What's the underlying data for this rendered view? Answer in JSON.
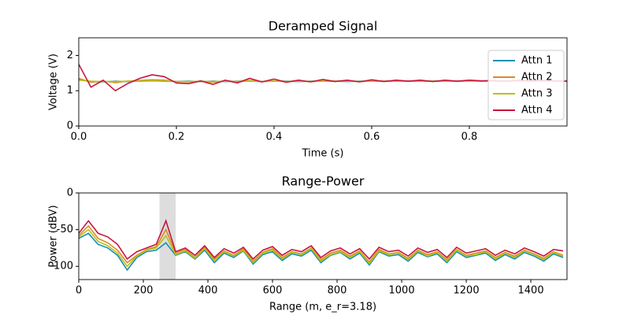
{
  "chart_data": [
    {
      "type": "line",
      "title": "Deramped Signal",
      "x_label": "Time (s)",
      "y_label": "Voltage (V)",
      "xlim": [
        0,
        1
      ],
      "ylim": [
        0,
        2.5
      ],
      "xticks": [
        {
          "value": 0,
          "label": "0.0"
        },
        0.2,
        0.4,
        0.6,
        0.8
      ],
      "yticks": [
        0,
        1,
        2
      ],
      "legend": "upper right",
      "x": [
        0,
        0.025,
        0.05,
        0.075,
        0.1,
        0.125,
        0.15,
        0.175,
        0.2,
        0.225,
        0.25,
        0.275,
        0.3,
        0.325,
        0.35,
        0.375,
        0.4,
        0.425,
        0.45,
        0.475,
        0.5,
        0.525,
        0.55,
        0.575,
        0.6,
        0.625,
        0.65,
        0.675,
        0.7,
        0.725,
        0.75,
        0.775,
        0.8,
        0.825,
        0.85,
        0.875,
        0.9,
        0.925,
        0.95,
        0.975,
        1.0
      ],
      "series": [
        {
          "name": "Attn 1",
          "color": "#1a8fb5",
          "values": [
            1.32,
            1.26,
            1.25,
            1.27,
            1.26,
            1.27,
            1.28,
            1.27,
            1.26,
            1.27,
            1.26,
            1.27,
            1.26,
            1.27,
            1.27,
            1.26,
            1.27,
            1.27,
            1.26,
            1.27,
            1.27,
            1.27,
            1.26,
            1.27,
            1.27,
            1.27,
            1.27,
            1.27,
            1.27,
            1.27,
            1.27,
            1.27,
            1.28,
            1.27,
            1.27,
            1.28,
            1.27,
            1.27,
            1.28,
            1.27,
            1.27
          ]
        },
        {
          "name": "Attn 2",
          "color": "#d98a27",
          "values": [
            1.35,
            1.24,
            1.27,
            1.23,
            1.27,
            1.29,
            1.31,
            1.3,
            1.26,
            1.25,
            1.27,
            1.24,
            1.28,
            1.26,
            1.29,
            1.26,
            1.28,
            1.26,
            1.28,
            1.26,
            1.28,
            1.27,
            1.28,
            1.26,
            1.28,
            1.27,
            1.28,
            1.27,
            1.28,
            1.27,
            1.28,
            1.27,
            1.28,
            1.27,
            1.28,
            1.27,
            1.28,
            1.27,
            1.28,
            1.27,
            1.27
          ]
        },
        {
          "name": "Attn 3",
          "color": "#b5c21a",
          "values": [
            1.3,
            1.27,
            1.26,
            1.26,
            1.27,
            1.27,
            1.28,
            1.28,
            1.26,
            1.26,
            1.27,
            1.26,
            1.27,
            1.26,
            1.27,
            1.26,
            1.27,
            1.26,
            1.27,
            1.26,
            1.27,
            1.27,
            1.27,
            1.26,
            1.27,
            1.27,
            1.27,
            1.27,
            1.27,
            1.27,
            1.27,
            1.27,
            1.28,
            1.27,
            1.27,
            1.28,
            1.27,
            1.27,
            1.28,
            1.27,
            1.27
          ]
        },
        {
          "name": "Attn 4",
          "color": "#c8143c",
          "values": [
            1.75,
            1.1,
            1.3,
            1.0,
            1.2,
            1.35,
            1.45,
            1.4,
            1.22,
            1.2,
            1.28,
            1.18,
            1.3,
            1.22,
            1.35,
            1.25,
            1.33,
            1.24,
            1.3,
            1.25,
            1.32,
            1.26,
            1.3,
            1.25,
            1.31,
            1.26,
            1.3,
            1.27,
            1.3,
            1.26,
            1.3,
            1.27,
            1.3,
            1.28,
            1.29,
            1.27,
            1.3,
            1.28,
            1.29,
            1.28,
            1.27
          ]
        }
      ]
    },
    {
      "type": "line",
      "title": "Range-Power",
      "x_label": "Range (m, e_r=3.18)",
      "y_label": "Power (dBV)",
      "xlim": [
        0,
        1512
      ],
      "ylim": [
        -118,
        0
      ],
      "xticks": [
        0,
        200,
        400,
        600,
        800,
        1000,
        1200,
        1400
      ],
      "yticks": [
        -100,
        -50,
        0
      ],
      "highlight": [
        250,
        300
      ],
      "x": [
        0,
        30,
        60,
        90,
        120,
        150,
        180,
        210,
        240,
        270,
        300,
        330,
        360,
        390,
        420,
        450,
        480,
        510,
        540,
        570,
        600,
        630,
        660,
        690,
        720,
        750,
        780,
        810,
        840,
        870,
        900,
        930,
        960,
        990,
        1020,
        1050,
        1080,
        1110,
        1140,
        1170,
        1200,
        1230,
        1260,
        1290,
        1320,
        1350,
        1380,
        1410,
        1440,
        1470,
        1500
      ],
      "series": [
        {
          "name": "Attn 1",
          "color": "#1a8fb5",
          "values": [
            -62,
            -55,
            -70,
            -75,
            -85,
            -105,
            -88,
            -80,
            -78,
            -68,
            -85,
            -80,
            -90,
            -78,
            -95,
            -82,
            -88,
            -79,
            -97,
            -84,
            -80,
            -92,
            -83,
            -86,
            -78,
            -95,
            -85,
            -81,
            -90,
            -82,
            -98,
            -80,
            -86,
            -84,
            -93,
            -81,
            -87,
            -83,
            -95,
            -80,
            -88,
            -85,
            -82,
            -92,
            -84,
            -90,
            -81,
            -86,
            -93,
            -83,
            -88
          ]
        },
        {
          "name": "Attn 2",
          "color": "#d98a27",
          "values": [
            -58,
            -45,
            -62,
            -68,
            -78,
            -95,
            -85,
            -77,
            -73,
            -50,
            -82,
            -77,
            -88,
            -74,
            -90,
            -79,
            -85,
            -76,
            -93,
            -81,
            -76,
            -88,
            -80,
            -83,
            -75,
            -91,
            -82,
            -78,
            -86,
            -79,
            -94,
            -77,
            -83,
            -81,
            -89,
            -78,
            -84,
            -80,
            -91,
            -77,
            -85,
            -82,
            -79,
            -88,
            -81,
            -86,
            -78,
            -83,
            -89,
            -80,
            -85
          ]
        },
        {
          "name": "Attn 3",
          "color": "#b5c21a",
          "values": [
            -60,
            -50,
            -66,
            -72,
            -82,
            -100,
            -86,
            -78,
            -75,
            -58,
            -84,
            -79,
            -89,
            -76,
            -92,
            -80,
            -86,
            -78,
            -95,
            -82,
            -78,
            -90,
            -81,
            -84,
            -76,
            -93,
            -84,
            -80,
            -88,
            -80,
            -96,
            -79,
            -84,
            -82,
            -91,
            -79,
            -86,
            -81,
            -93,
            -78,
            -86,
            -84,
            -80,
            -90,
            -82,
            -88,
            -79,
            -84,
            -91,
            -81,
            -86
          ]
        },
        {
          "name": "Attn 4",
          "color": "#c8143c",
          "values": [
            -55,
            -38,
            -55,
            -60,
            -70,
            -90,
            -80,
            -75,
            -70,
            -38,
            -80,
            -75,
            -85,
            -72,
            -88,
            -76,
            -82,
            -74,
            -90,
            -78,
            -73,
            -85,
            -77,
            -80,
            -72,
            -88,
            -79,
            -75,
            -83,
            -76,
            -90,
            -74,
            -80,
            -78,
            -86,
            -75,
            -81,
            -77,
            -88,
            -74,
            -82,
            -79,
            -76,
            -85,
            -78,
            -83,
            -75,
            -80,
            -86,
            -77,
            -79
          ]
        }
      ]
    }
  ]
}
